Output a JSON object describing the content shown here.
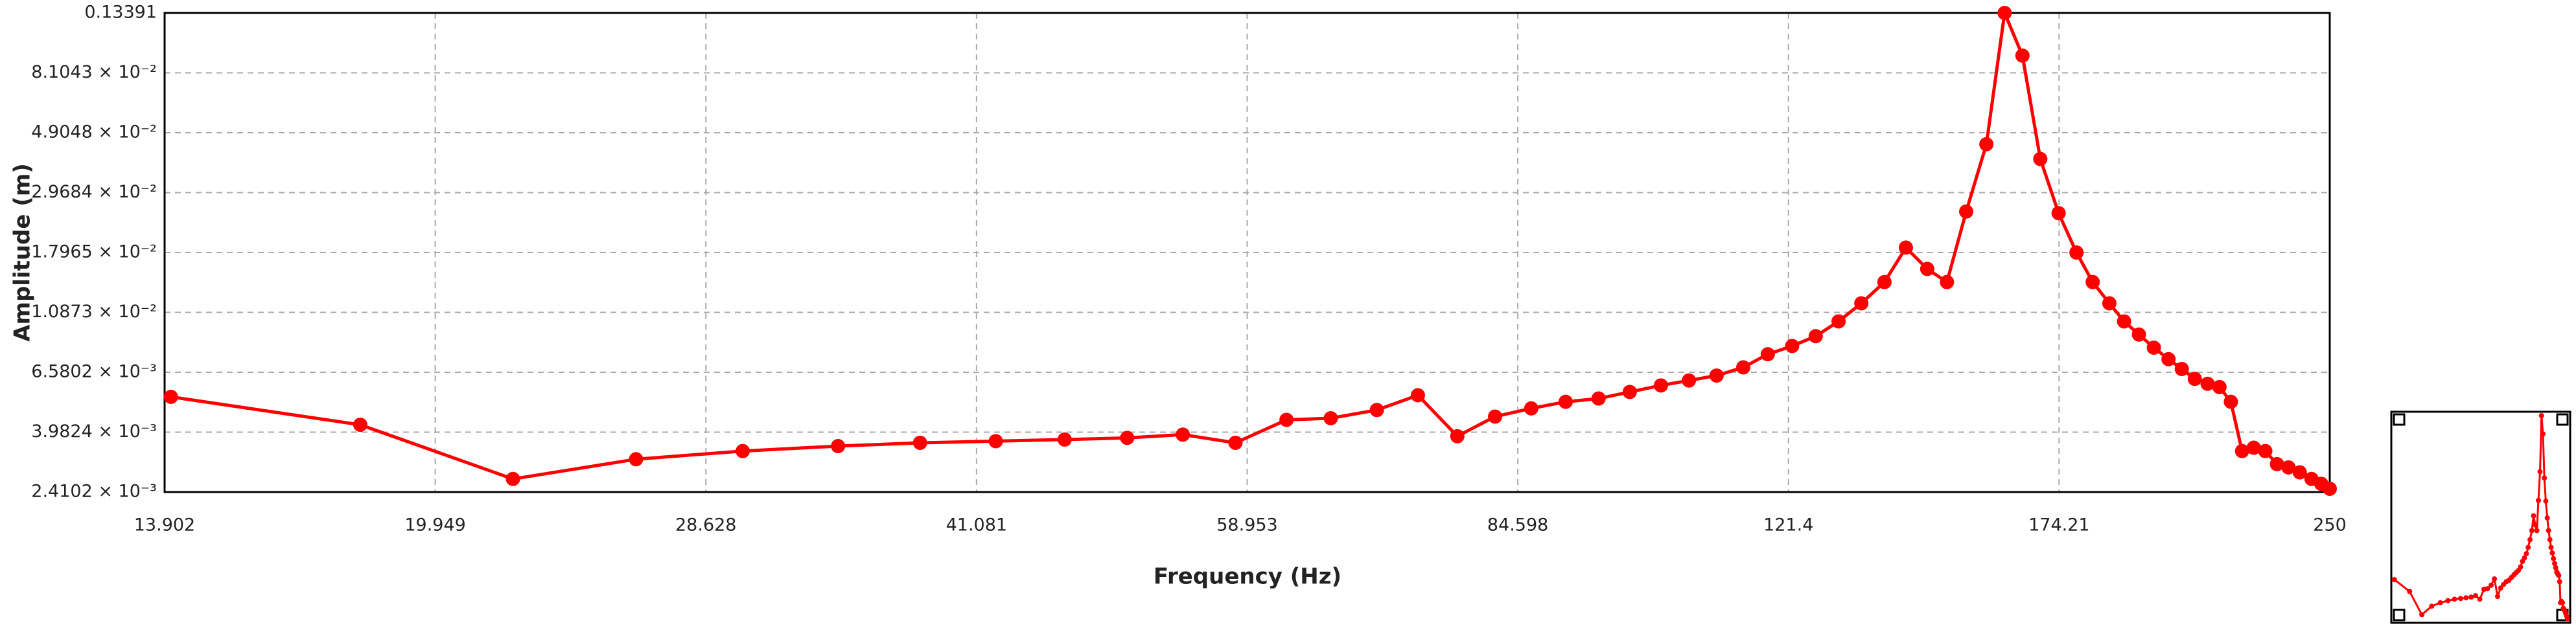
{
  "chart_data": {
    "type": "line",
    "xlabel": "Frequency (Hz)",
    "ylabel": "Amplitude (m)",
    "color": "#ff0000",
    "x": [
      14.02,
      18.05,
      22.13,
      26.08,
      30.07,
      34.15,
      38.1,
      42.15,
      46.21,
      50.23,
      54.1,
      58.04,
      62.13,
      65.91,
      70.09,
      74.04,
      78.04,
      82.07,
      86.13,
      90.18,
      94.23,
      98.23,
      102.4,
      106.3,
      110.3,
      114.3,
      118.1,
      122.0,
      125.9,
      129.8,
      133.8,
      138.0,
      142.0,
      146.1,
      150.0,
      153.9,
      158.1,
      162.0,
      165.9,
      169.9,
      174.1,
      178.3,
      182.2,
      186.3,
      190.0,
      193.8,
      197.7,
      201.6,
      205.2,
      208.8,
      212.4,
      215.8,
      219.1,
      222.4,
      225.9,
      229.4,
      233.0,
      236.6,
      240.2,
      244.0,
      247.2,
      250
    ],
    "values": [
      0.005353,
      0.004237,
      0.00269,
      0.003174,
      0.003399,
      0.003543,
      0.003642,
      0.003692,
      0.003743,
      0.003795,
      0.003901,
      0.003642,
      0.004415,
      0.004476,
      0.004795,
      0.005427,
      0.003848,
      0.004538,
      0.004861,
      0.005136,
      0.00528,
      0.005578,
      0.005893,
      0.006142,
      0.006401,
      0.006857,
      0.007655,
      0.0082,
      0.008906,
      0.01008,
      0.01173,
      0.01402,
      0.01872,
      0.01565,
      0.01402,
      0.02533,
      0.04454,
      0.13391,
      0.09364,
      0.03936,
      0.02499,
      0.01796,
      0.01402,
      0.01173,
      0.01008,
      0.009029,
      0.008087,
      0.007345,
      0.006763,
      0.006227,
      0.005976,
      0.005813,
      0.005136,
      0.003399,
      0.003495,
      0.003399,
      0.003046,
      0.002963,
      0.002843,
      0.00269,
      0.002582,
      0.002477
    ],
    "xlim": [
      13.902,
      250
    ],
    "ylim": [
      0.0024102,
      0.13391
    ],
    "log_x": true,
    "log_y": true,
    "grid": true,
    "xticks": [
      13.902,
      19.949,
      28.628,
      41.081,
      58.953,
      84.598,
      121.4,
      174.21,
      250
    ],
    "yticks": [
      {
        "value": 0.0024102,
        "label": "2.4102 × 10⁻³"
      },
      {
        "value": 0.0039824,
        "label": "3.9824 × 10⁻³"
      },
      {
        "value": 0.0065802,
        "label": "6.5802 × 10⁻³"
      },
      {
        "value": 0.010873,
        "label": "1.0873 × 10⁻²"
      },
      {
        "value": 0.017965,
        "label": "1.7965 × 10⁻²"
      },
      {
        "value": 0.029684,
        "label": "2.9684 × 10⁻²"
      },
      {
        "value": 0.049048,
        "label": "4.9048 × 10⁻²"
      },
      {
        "value": 0.081043,
        "label": "8.1043 × 10⁻²"
      },
      0.13391
    ]
  }
}
